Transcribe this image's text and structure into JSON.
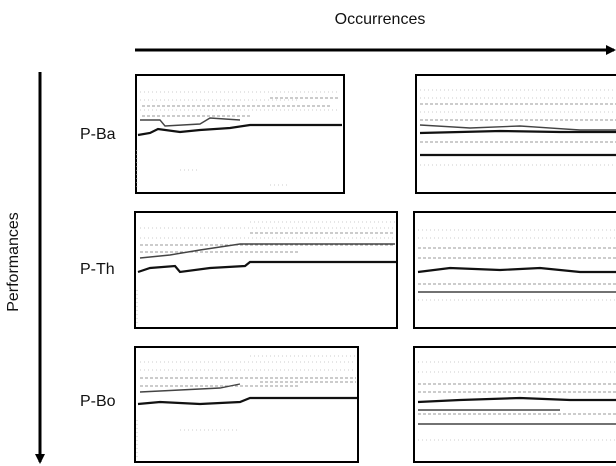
{
  "axes": {
    "horizontal": "Occurrences",
    "vertical": "Performances"
  },
  "rows": [
    {
      "label": "P-Ba"
    },
    {
      "label": "P-Th"
    },
    {
      "label": "P-Bo"
    }
  ]
}
